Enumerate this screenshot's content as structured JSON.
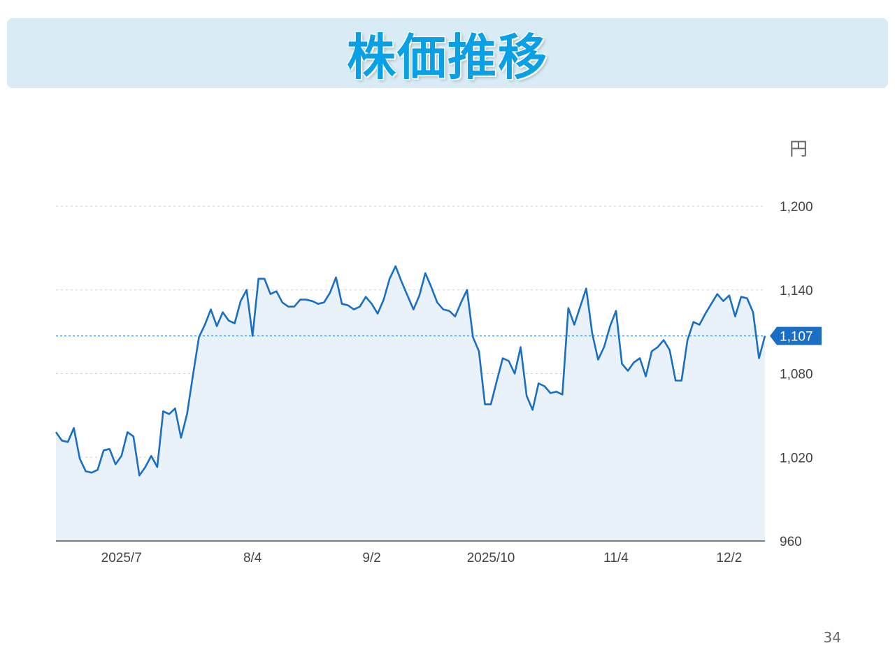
{
  "slide": {
    "title": "株価推移",
    "page_number": "34"
  },
  "chart_data": {
    "type": "area",
    "unit_label": "円",
    "ylim": [
      960,
      1200
    ],
    "y_ticks": [
      {
        "value": 1200,
        "label": "1,200"
      },
      {
        "value": 1140,
        "label": "1,140"
      },
      {
        "value": 1080,
        "label": "1,080"
      },
      {
        "value": 1020,
        "label": "1,020"
      },
      {
        "value": 960,
        "label": "960"
      }
    ],
    "x_ticks": [
      {
        "index": 11,
        "label": "2025/7"
      },
      {
        "index": 33,
        "label": "8/4"
      },
      {
        "index": 53,
        "label": "9/2"
      },
      {
        "index": 73,
        "label": "2025/10"
      },
      {
        "index": 94,
        "label": "11/4"
      },
      {
        "index": 113,
        "label": "12/2"
      }
    ],
    "current_value": 1107,
    "current_label": "1,107",
    "grid": true,
    "colors": {
      "line": "#1a6fc4",
      "fill": "#e9f2f9",
      "grid": "#cfcfcf",
      "marker": "#1a6fc4",
      "axis": "#555555"
    },
    "series": [
      {
        "values": [
          1038,
          1032,
          1031,
          1041,
          1019,
          1010,
          1009,
          1011,
          1025,
          1026,
          1015,
          1021,
          1038,
          1035,
          1007,
          1013,
          1021,
          1013,
          1053,
          1051,
          1055,
          1034,
          1051,
          1079,
          1106,
          1115,
          1126,
          1114,
          1124,
          1118,
          1116,
          1132,
          1140,
          1107,
          1148,
          1148,
          1137,
          1139,
          1131,
          1128,
          1128,
          1133,
          1133,
          1132,
          1130,
          1131,
          1138,
          1149,
          1130,
          1129,
          1126,
          1128,
          1135,
          1130,
          1123,
          1133,
          1148,
          1157,
          1146,
          1136,
          1126,
          1136,
          1152,
          1142,
          1131,
          1126,
          1125,
          1121,
          1131,
          1140,
          1106,
          1096,
          1058,
          1058,
          1075,
          1091,
          1089,
          1080,
          1099,
          1064,
          1054,
          1073,
          1071,
          1066,
          1067,
          1065,
          1127,
          1115,
          1128,
          1141,
          1109,
          1090,
          1099,
          1114,
          1125,
          1087,
          1082,
          1088,
          1091,
          1078,
          1096,
          1099,
          1104,
          1097,
          1075,
          1075,
          1104,
          1117,
          1115,
          1123,
          1130,
          1137,
          1132,
          1136,
          1121,
          1135,
          1134,
          1124,
          1091,
          1107
        ]
      }
    ]
  }
}
